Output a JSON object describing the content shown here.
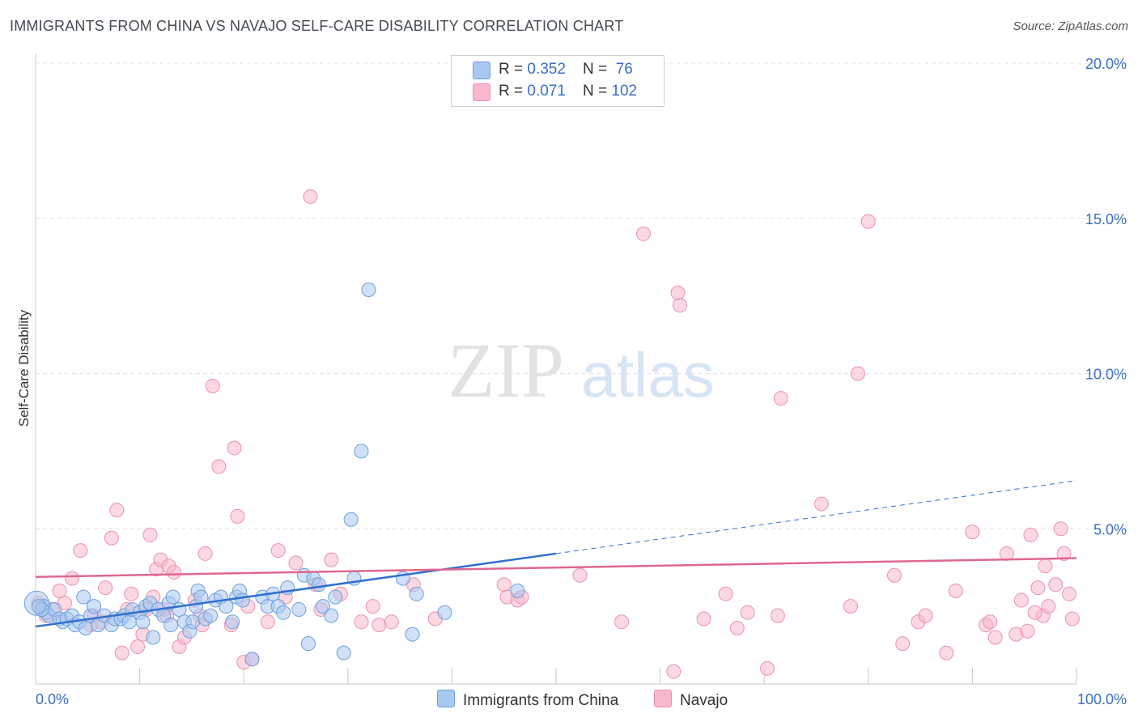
{
  "title": "IMMIGRANTS FROM CHINA VS NAVAJO SELF-CARE DISABILITY CORRELATION CHART",
  "source": "Source: ZipAtlas.com",
  "watermark": {
    "zip": "ZIP",
    "atlas": "atlas"
  },
  "colors": {
    "china_fill": "#a9c8f0",
    "china_stroke": "#6f9fdc",
    "china_line": "#2f6fcf",
    "navajo_fill": "#f7b8cb",
    "navajo_stroke": "#e993ad",
    "navajo_line": "#e0678f",
    "tick_text": "#3a6fc4",
    "grid": "#e3e3e3"
  },
  "legend": {
    "rows": [
      {
        "r_label": "R = ",
        "r_value": "0.352",
        "n_label": "N = ",
        "n_value": " 76"
      },
      {
        "r_label": "R = ",
        "r_value": "0.071",
        "n_label": "N = ",
        "n_value": "102"
      }
    ]
  },
  "bottom_legend": {
    "china": "Immigrants from China",
    "navajo": "Navajo"
  },
  "chart_data": {
    "type": "scatter",
    "ylabel": "Self-Care Disability",
    "xlim": [
      0,
      100
    ],
    "ylim": [
      0,
      20
    ],
    "y_ticks": [
      {
        "value": 5,
        "label": "5.0%"
      },
      {
        "value": 10,
        "label": "10.0%"
      },
      {
        "value": 15,
        "label": "15.0%"
      },
      {
        "value": 20,
        "label": "20.0%"
      }
    ],
    "x_tick_labels": [
      {
        "value": 0,
        "label": "0.0%"
      },
      {
        "value": 100,
        "label": "100.0%"
      }
    ],
    "series": [
      {
        "name": "Immigrants from China",
        "R": 0.352,
        "N": 76,
        "trend": {
          "x0": 0,
          "y0": 1.85,
          "x1": 50,
          "y1": 4.2,
          "dashed_to_x": 100,
          "dashed_to_y": 6.55
        },
        "points": [
          [
            0.1,
            2.6
          ],
          [
            0.8,
            2.5
          ],
          [
            1.0,
            2.3
          ],
          [
            1.3,
            2.2
          ],
          [
            1.8,
            2.4
          ],
          [
            2.3,
            2.1
          ],
          [
            2.6,
            2.0
          ],
          [
            3.0,
            2.1
          ],
          [
            3.5,
            2.2
          ],
          [
            3.8,
            1.9
          ],
          [
            4.2,
            2.0
          ],
          [
            4.6,
            2.8
          ],
          [
            4.8,
            1.8
          ],
          [
            5.3,
            2.2
          ],
          [
            5.6,
            2.5
          ],
          [
            6.0,
            1.9
          ],
          [
            6.6,
            2.2
          ],
          [
            7.3,
            1.9
          ],
          [
            7.6,
            2.1
          ],
          [
            8.2,
            2.1
          ],
          [
            8.5,
            2.2
          ],
          [
            9.0,
            2.0
          ],
          [
            9.3,
            2.4
          ],
          [
            10.0,
            2.3
          ],
          [
            10.3,
            2.0
          ],
          [
            10.6,
            2.5
          ],
          [
            11.0,
            2.6
          ],
          [
            11.3,
            1.5
          ],
          [
            11.8,
            2.4
          ],
          [
            12.3,
            2.2
          ],
          [
            12.8,
            2.6
          ],
          [
            13.0,
            1.9
          ],
          [
            13.2,
            2.8
          ],
          [
            13.8,
            2.4
          ],
          [
            14.3,
            2.0
          ],
          [
            14.8,
            1.7
          ],
          [
            15.1,
            2.0
          ],
          [
            15.4,
            2.5
          ],
          [
            15.6,
            3.0
          ],
          [
            15.9,
            2.8
          ],
          [
            16.3,
            2.1
          ],
          [
            16.8,
            2.2
          ],
          [
            17.3,
            2.7
          ],
          [
            17.8,
            2.8
          ],
          [
            18.3,
            2.5
          ],
          [
            18.9,
            2.0
          ],
          [
            19.3,
            2.8
          ],
          [
            19.6,
            3.0
          ],
          [
            19.9,
            2.7
          ],
          [
            20.8,
            0.8
          ],
          [
            21.8,
            2.8
          ],
          [
            22.3,
            2.5
          ],
          [
            22.8,
            2.9
          ],
          [
            23.3,
            2.5
          ],
          [
            23.8,
            2.3
          ],
          [
            24.2,
            3.1
          ],
          [
            25.3,
            2.4
          ],
          [
            25.8,
            3.5
          ],
          [
            26.2,
            1.3
          ],
          [
            26.7,
            3.4
          ],
          [
            27.2,
            3.2
          ],
          [
            27.6,
            2.5
          ],
          [
            28.4,
            2.2
          ],
          [
            28.8,
            2.8
          ],
          [
            29.6,
            1.0
          ],
          [
            30.3,
            5.3
          ],
          [
            30.6,
            3.4
          ],
          [
            31.3,
            7.5
          ],
          [
            32.0,
            12.7
          ],
          [
            35.3,
            3.4
          ],
          [
            36.2,
            1.6
          ],
          [
            36.6,
            2.9
          ],
          [
            39.3,
            2.3
          ],
          [
            46.3,
            3.0
          ],
          [
            0.6,
            2.4
          ],
          [
            0.3,
            2.5
          ]
        ]
      },
      {
        "name": "Navajo",
        "R": 0.071,
        "N": 102,
        "trend": {
          "x0": 0,
          "y0": 3.45,
          "x1": 100,
          "y1": 4.05
        },
        "points": [
          [
            0.3,
            2.6
          ],
          [
            1.0,
            2.2
          ],
          [
            1.6,
            2.4
          ],
          [
            2.3,
            3.0
          ],
          [
            2.8,
            2.6
          ],
          [
            3.5,
            3.4
          ],
          [
            4.3,
            4.3
          ],
          [
            5.3,
            1.9
          ],
          [
            5.6,
            2.2
          ],
          [
            6.3,
            2.0
          ],
          [
            6.7,
            3.1
          ],
          [
            7.3,
            4.7
          ],
          [
            7.8,
            5.6
          ],
          [
            8.3,
            1.0
          ],
          [
            8.8,
            2.4
          ],
          [
            9.2,
            2.9
          ],
          [
            9.8,
            1.2
          ],
          [
            10.3,
            1.6
          ],
          [
            10.6,
            2.4
          ],
          [
            11.0,
            4.8
          ],
          [
            11.3,
            2.8
          ],
          [
            11.6,
            3.7
          ],
          [
            12.0,
            4.0
          ],
          [
            12.3,
            2.4
          ],
          [
            12.6,
            2.2
          ],
          [
            12.8,
            3.8
          ],
          [
            13.3,
            3.6
          ],
          [
            13.8,
            1.2
          ],
          [
            14.3,
            1.5
          ],
          [
            15.3,
            2.7
          ],
          [
            15.8,
            2.2
          ],
          [
            16.0,
            1.9
          ],
          [
            16.3,
            4.2
          ],
          [
            17.0,
            9.6
          ],
          [
            17.6,
            7.0
          ],
          [
            18.8,
            1.9
          ],
          [
            19.1,
            7.6
          ],
          [
            19.4,
            5.4
          ],
          [
            20.0,
            0.7
          ],
          [
            20.4,
            2.5
          ],
          [
            20.8,
            0.8
          ],
          [
            22.3,
            2.0
          ],
          [
            23.3,
            4.3
          ],
          [
            24.0,
            2.8
          ],
          [
            25.0,
            3.9
          ],
          [
            26.4,
            15.7
          ],
          [
            26.9,
            3.2
          ],
          [
            27.4,
            2.4
          ],
          [
            28.4,
            4.0
          ],
          [
            29.3,
            2.9
          ],
          [
            31.3,
            2.0
          ],
          [
            32.4,
            2.5
          ],
          [
            33.0,
            1.9
          ],
          [
            34.2,
            2.0
          ],
          [
            36.3,
            3.2
          ],
          [
            38.4,
            2.1
          ],
          [
            45.0,
            3.2
          ],
          [
            45.3,
            2.8
          ],
          [
            46.3,
            2.7
          ],
          [
            46.7,
            2.8
          ],
          [
            52.3,
            3.5
          ],
          [
            56.3,
            2.0
          ],
          [
            58.4,
            14.5
          ],
          [
            61.3,
            0.4
          ],
          [
            61.7,
            12.6
          ],
          [
            61.9,
            12.2
          ],
          [
            64.2,
            2.1
          ],
          [
            66.3,
            2.9
          ],
          [
            67.4,
            1.8
          ],
          [
            68.4,
            2.3
          ],
          [
            70.3,
            0.5
          ],
          [
            71.3,
            2.2
          ],
          [
            71.6,
            9.2
          ],
          [
            75.5,
            5.8
          ],
          [
            78.3,
            2.5
          ],
          [
            79.0,
            10.0
          ],
          [
            80.0,
            14.9
          ],
          [
            82.5,
            3.5
          ],
          [
            83.3,
            1.3
          ],
          [
            84.8,
            2.0
          ],
          [
            85.5,
            2.2
          ],
          [
            87.5,
            1.0
          ],
          [
            88.4,
            3.0
          ],
          [
            90.0,
            4.9
          ],
          [
            91.3,
            1.9
          ],
          [
            91.7,
            2.0
          ],
          [
            92.2,
            1.5
          ],
          [
            93.3,
            4.2
          ],
          [
            94.2,
            1.6
          ],
          [
            94.7,
            2.7
          ],
          [
            95.3,
            1.7
          ],
          [
            95.6,
            4.8
          ],
          [
            96.3,
            3.1
          ],
          [
            96.8,
            2.2
          ],
          [
            97.3,
            2.5
          ],
          [
            98.0,
            3.2
          ],
          [
            98.5,
            5.0
          ],
          [
            98.8,
            4.2
          ],
          [
            99.3,
            2.9
          ],
          [
            99.6,
            2.1
          ],
          [
            97.0,
            3.8
          ],
          [
            96.0,
            2.3
          ]
        ]
      }
    ]
  }
}
